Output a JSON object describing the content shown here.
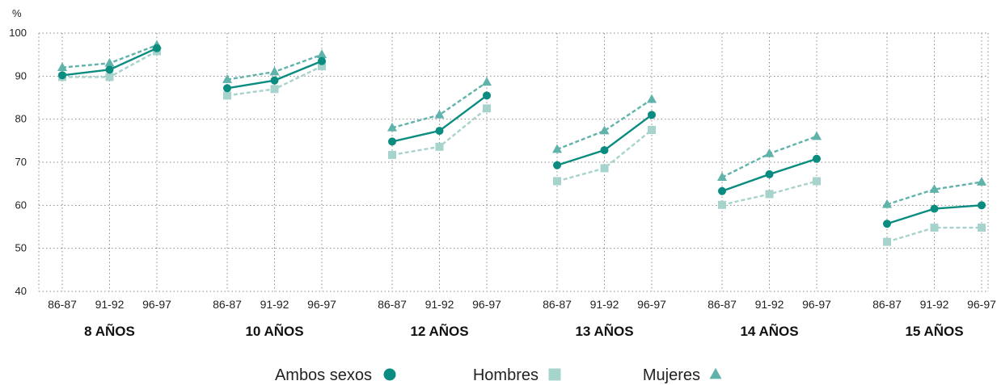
{
  "chart_data": {
    "type": "line",
    "unit_label": "%",
    "ylim": [
      40,
      100
    ],
    "yticks": [
      40,
      50,
      60,
      70,
      80,
      90,
      100
    ],
    "grid": true,
    "legend_position": "bottom-center",
    "x_period_labels": [
      "86-87",
      "91-92",
      "96-97"
    ],
    "groups": [
      "8 AÑOS",
      "10 AÑOS",
      "12 AÑOS",
      "13 AÑOS",
      "14 AÑOS",
      "15 AÑOS"
    ],
    "series": [
      {
        "name": "Ambos sexos",
        "color": "#0a8c80",
        "marker": "circle",
        "line": "solid",
        "values": [
          [
            90.2,
            91.5,
            96.5
          ],
          [
            87.2,
            89.0,
            93.5
          ],
          [
            74.8,
            77.3,
            85.5
          ],
          [
            69.3,
            72.8,
            81.0
          ],
          [
            63.3,
            67.2,
            70.8
          ],
          [
            55.7,
            59.2,
            60.0
          ]
        ]
      },
      {
        "name": "Hombres",
        "color": "#a6d3cc",
        "marker": "square",
        "line": "dashed",
        "values": [
          [
            89.8,
            89.8,
            95.8
          ],
          [
            85.5,
            87.0,
            92.3
          ],
          [
            71.7,
            73.6,
            82.5
          ],
          [
            65.6,
            68.6,
            77.5
          ],
          [
            60.1,
            62.6,
            65.6
          ],
          [
            51.5,
            54.8,
            54.8
          ]
        ]
      },
      {
        "name": "Mujeres",
        "color": "#5fb3aa",
        "marker": "triangle",
        "line": "dashed",
        "values": [
          [
            92.0,
            93.0,
            97.2
          ],
          [
            89.2,
            91.0,
            95.0
          ],
          [
            78.0,
            81.0,
            88.6
          ],
          [
            73.0,
            77.3,
            84.6
          ],
          [
            66.5,
            72.0,
            76.0
          ],
          [
            60.2,
            63.7,
            65.4
          ]
        ]
      }
    ]
  }
}
